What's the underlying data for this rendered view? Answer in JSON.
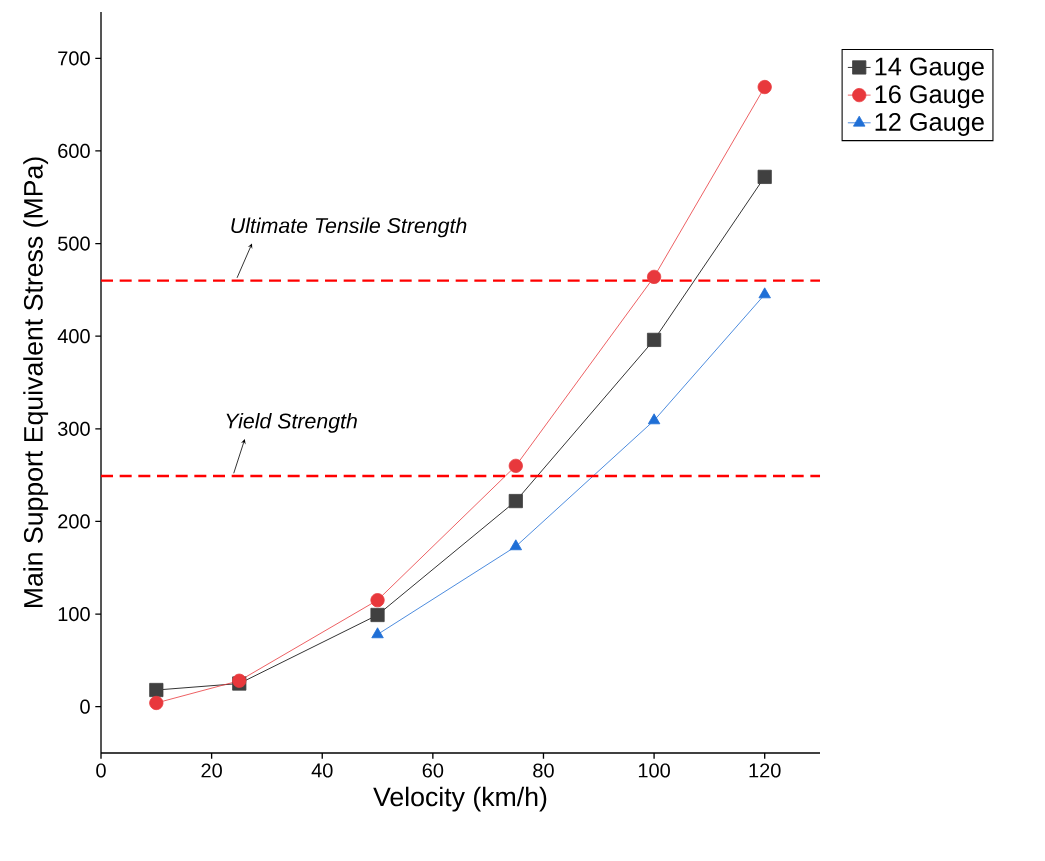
{
  "chart_data": {
    "type": "line",
    "xlabel": "Velocity (km/h)",
    "ylabel": "Main Support Equivalent Stress (MPa)",
    "xlim": [
      0,
      130
    ],
    "ylim": [
      -50,
      750
    ],
    "xticks": [
      0,
      20,
      40,
      60,
      80,
      100,
      120
    ],
    "yticks": [
      0,
      100,
      200,
      300,
      400,
      500,
      600,
      700
    ],
    "grid": false,
    "legend": "top right",
    "line_style": "solid",
    "series": [
      {
        "name": "14 Gauge",
        "color": "#404040",
        "marker": "square",
        "x": [
          10,
          25,
          50,
          75,
          100,
          120
        ],
        "values": [
          18,
          25,
          99,
          222,
          396,
          572
        ]
      },
      {
        "name": "16 Gauge",
        "color": "#e8383c",
        "marker": "circle",
        "x": [
          10,
          25,
          50,
          75,
          100,
          120
        ],
        "values": [
          4,
          28,
          115,
          260,
          464,
          669
        ]
      },
      {
        "name": "12 Gauge",
        "color": "#1f6fd6",
        "marker": "triangle",
        "x": [
          50,
          75,
          100,
          120
        ],
        "values": [
          78,
          173,
          309,
          445
        ]
      }
    ],
    "ref_lines": [
      {
        "axis": "y",
        "value": 460,
        "label": "Ultimate Tensile Strength",
        "color": "#ff0000",
        "line_style": "dashed"
      },
      {
        "axis": "y",
        "value": 249,
        "label": "Yield Strength",
        "color": "#ff0000",
        "line_style": "dashed"
      }
    ]
  }
}
